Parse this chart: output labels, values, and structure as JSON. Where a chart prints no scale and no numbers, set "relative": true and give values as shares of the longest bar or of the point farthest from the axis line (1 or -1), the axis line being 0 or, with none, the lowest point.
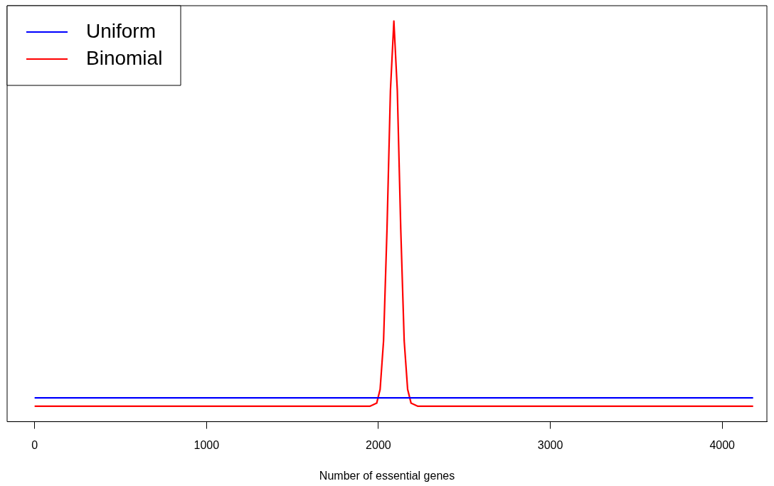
{
  "chart_data": {
    "type": "line",
    "xlabel": "Number of essential genes",
    "relative": true,
    "xlim": [
      -160,
      4260
    ],
    "xticks": [
      0,
      1000,
      2000,
      3000,
      4000
    ],
    "tick_labels": "x",
    "grid": false,
    "legend": "top left",
    "marker": "none",
    "line_style": "solid",
    "series": [
      {
        "name": "Uniform",
        "color": "#0000ff",
        "x": [
          0,
          4180
        ],
        "values": [
          0.022,
          0.022
        ]
      },
      {
        "name": "Binomial",
        "color": "#ff0000",
        "x": [
          0,
          1950,
          1990,
          2010,
          2030,
          2050,
          2070,
          2090,
          2110,
          2130,
          2150,
          2170,
          2190,
          2230,
          4180
        ],
        "values": [
          0,
          0,
          0.008,
          0.044,
          0.17,
          0.46,
          0.82,
          1,
          0.82,
          0.46,
          0.17,
          0.044,
          0.008,
          0,
          0
        ]
      }
    ]
  }
}
